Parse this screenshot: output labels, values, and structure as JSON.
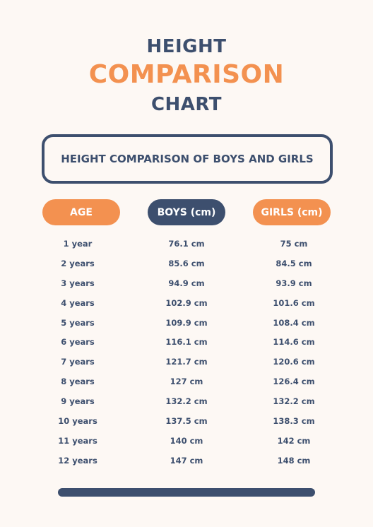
{
  "title": {
    "line1": "HEIGHT",
    "line2": "COMPARISON",
    "line3": "CHART"
  },
  "subtitle": "HEIGHT COMPARISON OF BOYS AND GIRLS",
  "headers": {
    "age": "AGE",
    "boys": "BOYS (cm)",
    "girls": "GIRLS (cm)"
  },
  "rows": [
    {
      "age": "1 year",
      "boys": "76.1 cm",
      "girls": "75 cm"
    },
    {
      "age": "2 years",
      "boys": "85.6 cm",
      "girls": "84.5 cm"
    },
    {
      "age": "3 years",
      "boys": "94.9 cm",
      "girls": "93.9 cm"
    },
    {
      "age": "4 years",
      "boys": "102.9 cm",
      "girls": "101.6 cm"
    },
    {
      "age": "5 years",
      "boys": "109.9 cm",
      "girls": "108.4 cm"
    },
    {
      "age": "6 years",
      "boys": "116.1 cm",
      "girls": "114.6 cm"
    },
    {
      "age": "7 years",
      "boys": "121.7 cm",
      "girls": "120.6 cm"
    },
    {
      "age": "8 years",
      "boys": "127 cm",
      "girls": "126.4 cm"
    },
    {
      "age": "9 years",
      "boys": "132.2 cm",
      "girls": "132.2 cm"
    },
    {
      "age": "10 years",
      "boys": "137.5 cm",
      "girls": "138.3 cm"
    },
    {
      "age": "11 years",
      "boys": "140 cm",
      "girls": "142 cm"
    },
    {
      "age": "12 years",
      "boys": "147 cm",
      "girls": "148 cm"
    }
  ],
  "colors": {
    "navy": "#3d4f6e",
    "orange": "#f39150",
    "background": "#fdf8f4"
  }
}
